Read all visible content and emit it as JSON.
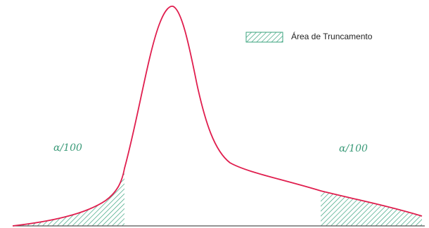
{
  "legend": {
    "label": "Área de Truncamento"
  },
  "labels": {
    "left_tail": "α/100",
    "right_tail": "α/100"
  },
  "colors": {
    "curve": "#e01e4e",
    "hatch": "#3aa37e",
    "label": "#3a9a78",
    "baseline": "#555555"
  }
}
